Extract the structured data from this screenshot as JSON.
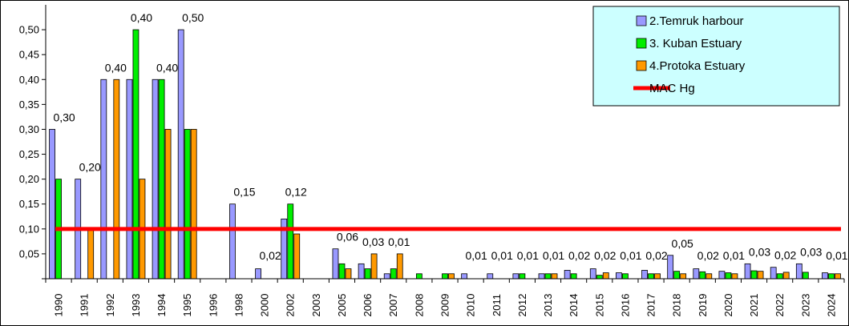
{
  "chart_data": {
    "type": "bar",
    "title": "",
    "xlabel": "",
    "ylabel": "",
    "ylim": [
      0,
      0.55
    ],
    "y_ticks": [
      "0,05",
      "0,10",
      "0,15",
      "0,20",
      "0,25",
      "0,30",
      "0,35",
      "0,40",
      "0,45",
      "0,50"
    ],
    "categories": [
      "1990",
      "1991",
      "1992",
      "1993",
      "1994",
      "1995",
      "1996",
      "1998",
      "2000",
      "2002",
      "2003",
      "2005",
      "2006",
      "2007",
      "2008",
      "2009",
      "2010",
      "2011",
      "2012",
      "2013",
      "2014",
      "2015",
      "2016",
      "2017",
      "2018",
      "2019",
      "2020",
      "2021",
      "2022",
      "2023",
      "2024"
    ],
    "series": [
      {
        "name": "2.Temruk harbour",
        "color": "#9999ff",
        "values": [
          0.3,
          0.2,
          0.4,
          0.4,
          0.4,
          0.5,
          0,
          0.15,
          0.02,
          0.12,
          0,
          0.06,
          0.03,
          0.01,
          0,
          0,
          0.01,
          0.01,
          0.01,
          0.01,
          0.017,
          0.02,
          0.012,
          0.017,
          0.047,
          0.02,
          0.015,
          0.03,
          0.023,
          0.03,
          0.012
        ]
      },
      {
        "name": "3. Kuban Estuary",
        "color": "#00ee00",
        "values": [
          0.2,
          0,
          0,
          0.5,
          0.4,
          0.3,
          0,
          0,
          0,
          0.15,
          0,
          0.03,
          0.02,
          0.02,
          0.01,
          0.01,
          0,
          0,
          0.01,
          0.01,
          0.01,
          0.007,
          0.01,
          0.01,
          0.015,
          0.014,
          0.012,
          0.016,
          0.01,
          0.013,
          0.01
        ]
      },
      {
        "name": "4.Protoka Estuary",
        "color": "#ff9900",
        "values": [
          0,
          0.1,
          0.4,
          0.2,
          0.3,
          0.3,
          0,
          0,
          0,
          0.09,
          0,
          0.02,
          0.05,
          0.05,
          0,
          0.01,
          0,
          0,
          0,
          0.01,
          0,
          0.012,
          0,
          0.01,
          0.01,
          0.01,
          0.01,
          0.015,
          0.013,
          0,
          0.01
        ]
      }
    ],
    "data_labels": [
      {
        "category": "1990",
        "text": "0,30"
      },
      {
        "category": "1991",
        "text": "0,20"
      },
      {
        "category": "1992",
        "text": "0,40"
      },
      {
        "category": "1993",
        "text": "0,40"
      },
      {
        "category": "1994",
        "text": "0,40"
      },
      {
        "category": "1995",
        "text": "0,50"
      },
      {
        "category": "1998",
        "text": "0,15"
      },
      {
        "category": "2000",
        "text": "0,02"
      },
      {
        "category": "2002",
        "text": "0,12"
      },
      {
        "category": "2005",
        "text": "0,06"
      },
      {
        "category": "2006",
        "text": "0,03"
      },
      {
        "category": "2007",
        "text": "0,01"
      },
      {
        "category": "2010",
        "text": "0,01"
      },
      {
        "category": "2011",
        "text": "0,01"
      },
      {
        "category": "2012",
        "text": "0,01"
      },
      {
        "category": "2013",
        "text": "0,01"
      },
      {
        "category": "2014",
        "text": "0,02"
      },
      {
        "category": "2015",
        "text": "0,02"
      },
      {
        "category": "2016",
        "text": "0,01"
      },
      {
        "category": "2017",
        "text": "0,02"
      },
      {
        "category": "2018",
        "text": "0,05"
      },
      {
        "category": "2019",
        "text": "0,02"
      },
      {
        "category": "2020",
        "text": "0,01"
      },
      {
        "category": "2021",
        "text": "0,03"
      },
      {
        "category": "2022",
        "text": "0,02"
      },
      {
        "category": "2023",
        "text": "0,03"
      },
      {
        "category": "2024",
        "text": "0,01"
      }
    ],
    "threshold": {
      "name": "MAC Hg",
      "value": 0.1,
      "color": "#ff0000"
    },
    "legend": {
      "placement": "top-right",
      "background": "#ccffff"
    },
    "grid": false
  }
}
